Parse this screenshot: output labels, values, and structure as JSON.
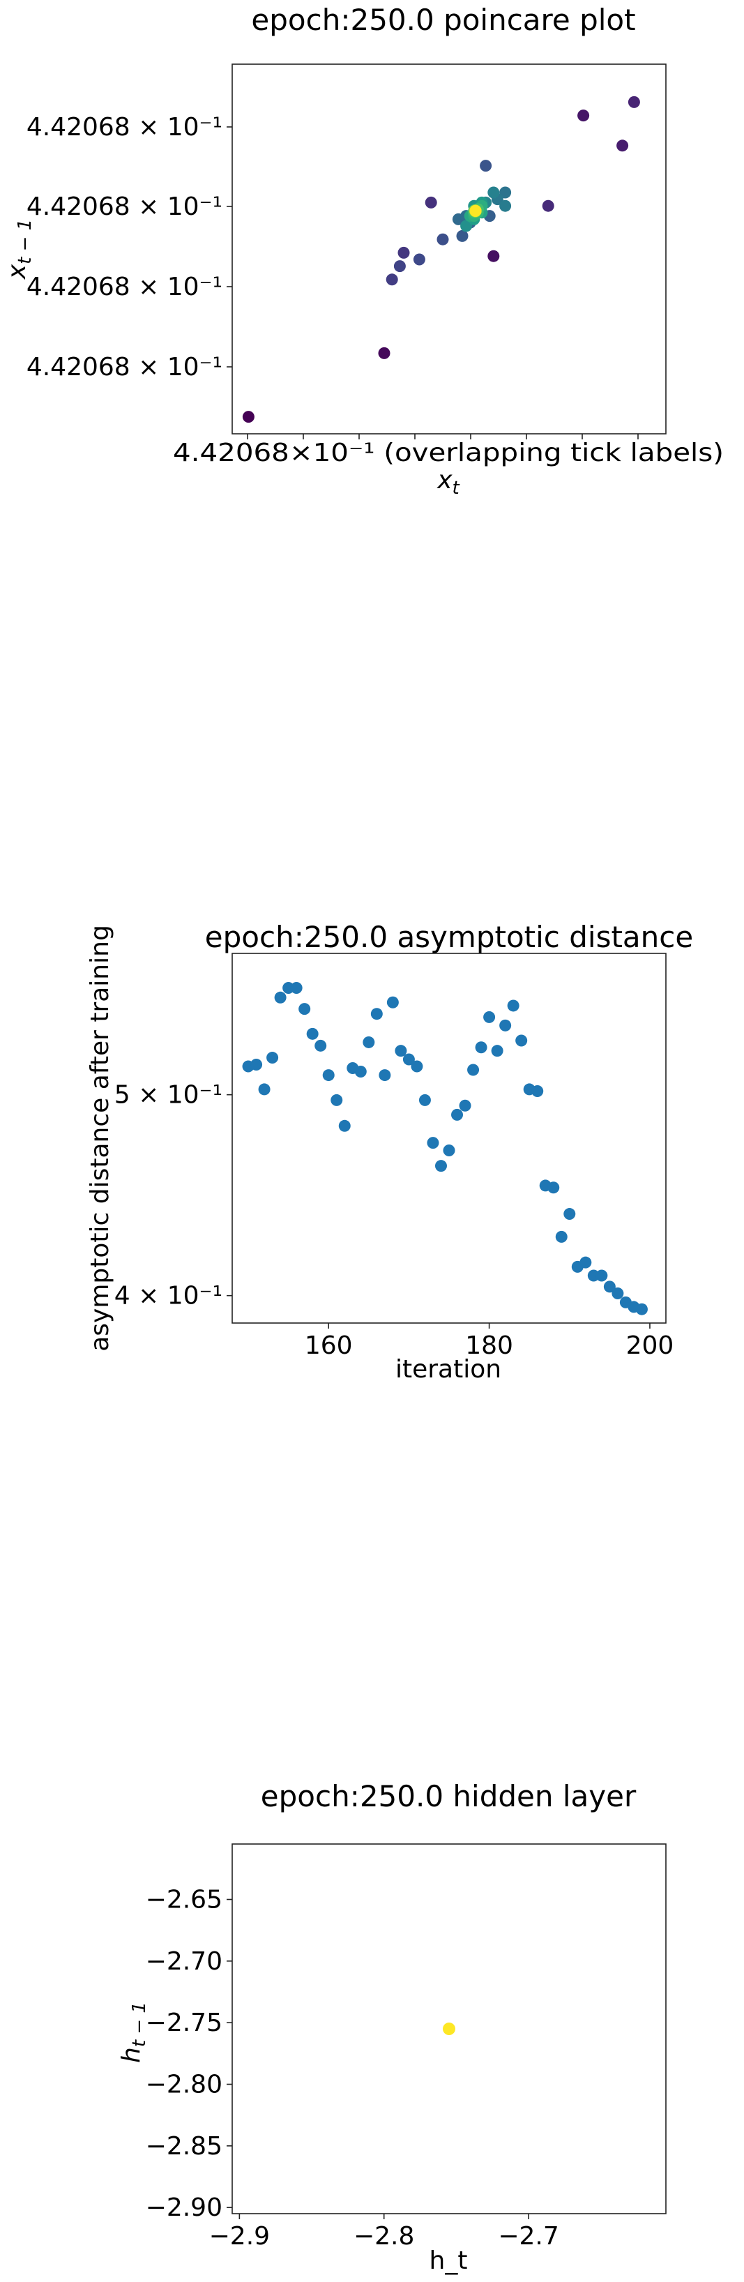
{
  "chart_data": [
    {
      "type": "scatter",
      "title": "epoch:250.0 poincare plot",
      "xlabel": "x_t",
      "ylabel": "x_{t−1}",
      "xscale": "log",
      "yscale": "log",
      "x_tick_text": "4.42068×10⁻¹ (overlapping tick labels)",
      "x_tick_labels": [
        "4.42068 × 10⁻¹",
        "4.42068 × 10⁻¹",
        "4.42068 × 10⁻¹",
        "4.42068 × 10⁻¹",
        "4.42068 × 10⁻¹",
        "4.42068 × 10⁻¹",
        "4.42068 × 10⁻¹",
        "4.42068 × 10⁻¹"
      ],
      "y_tick_labels": [
        "4.42068 × 10⁻¹",
        "4.42068 × 10⁻¹",
        "4.42068 × 10⁻¹",
        "4.42068 × 10⁻¹"
      ],
      "colormap": "viridis (later points brighter)",
      "points": [
        {
          "x": 0.0025,
          "y": 0.03,
          "c": 0.0
        },
        {
          "x": 0.35,
          "y": 0.22,
          "c": 0.02
        },
        {
          "x": 0.63,
          "y": 0.51,
          "c": 0.04
        },
        {
          "x": 0.86,
          "y": 0.93,
          "c": 0.06
        },
        {
          "x": 0.96,
          "y": 0.84,
          "c": 0.08
        },
        {
          "x": 0.99,
          "y": 0.97,
          "c": 0.1
        },
        {
          "x": 0.77,
          "y": 0.66,
          "c": 0.12
        },
        {
          "x": 0.47,
          "y": 0.67,
          "c": 0.14
        },
        {
          "x": 0.4,
          "y": 0.52,
          "c": 0.16
        },
        {
          "x": 0.37,
          "y": 0.44,
          "c": 0.18
        },
        {
          "x": 0.39,
          "y": 0.48,
          "c": 0.2
        },
        {
          "x": 0.44,
          "y": 0.5,
          "c": 0.22
        },
        {
          "x": 0.5,
          "y": 0.56,
          "c": 0.24
        },
        {
          "x": 0.61,
          "y": 0.78,
          "c": 0.26
        },
        {
          "x": 0.55,
          "y": 0.57,
          "c": 0.28
        },
        {
          "x": 0.62,
          "y": 0.63,
          "c": 0.3
        },
        {
          "x": 0.57,
          "y": 0.61,
          "c": 0.32
        },
        {
          "x": 0.54,
          "y": 0.62,
          "c": 0.34
        },
        {
          "x": 0.56,
          "y": 0.63,
          "c": 0.36
        },
        {
          "x": 0.66,
          "y": 0.7,
          "c": 0.38
        },
        {
          "x": 0.64,
          "y": 0.68,
          "c": 0.4
        },
        {
          "x": 0.66,
          "y": 0.66,
          "c": 0.42
        },
        {
          "x": 0.63,
          "y": 0.7,
          "c": 0.44
        },
        {
          "x": 0.61,
          "y": 0.67,
          "c": 0.46
        },
        {
          "x": 0.59,
          "y": 0.64,
          "c": 0.48
        },
        {
          "x": 0.56,
          "y": 0.6,
          "c": 0.5
        },
        {
          "x": 0.58,
          "y": 0.66,
          "c": 0.52
        },
        {
          "x": 0.6,
          "y": 0.67,
          "c": 0.54
        },
        {
          "x": 0.58,
          "y": 0.62,
          "c": 0.56
        },
        {
          "x": 0.6,
          "y": 0.64,
          "c": 0.58
        },
        {
          "x": 0.57,
          "y": 0.63,
          "c": 0.6
        },
        {
          "x": 0.6,
          "y": 0.66,
          "c": 0.62
        },
        {
          "x": 0.58,
          "y": 0.63,
          "c": 0.64
        },
        {
          "x": 0.59,
          "y": 0.64,
          "c": 0.66
        },
        {
          "x": 0.58,
          "y": 0.64,
          "c": 0.68
        },
        {
          "x": 0.59,
          "y": 0.65,
          "c": 0.7
        },
        {
          "x": 0.58,
          "y": 0.645,
          "c": 0.72
        },
        {
          "x": 0.585,
          "y": 0.645,
          "c": 0.74
        },
        {
          "x": 0.582,
          "y": 0.647,
          "c": 0.76
        },
        {
          "x": 0.584,
          "y": 0.643,
          "c": 0.78
        },
        {
          "x": 0.583,
          "y": 0.646,
          "c": 0.8
        },
        {
          "x": 0.584,
          "y": 0.645,
          "c": 0.82
        },
        {
          "x": 0.583,
          "y": 0.644,
          "c": 0.84
        },
        {
          "x": 0.584,
          "y": 0.646,
          "c": 0.86
        },
        {
          "x": 0.583,
          "y": 0.645,
          "c": 0.88
        },
        {
          "x": 0.584,
          "y": 0.645,
          "c": 0.9
        },
        {
          "x": 0.584,
          "y": 0.645,
          "c": 0.93
        },
        {
          "x": 0.584,
          "y": 0.645,
          "c": 0.96
        },
        {
          "x": 0.584,
          "y": 0.645,
          "c": 1.0
        }
      ]
    },
    {
      "type": "scatter",
      "title": "epoch:250.0 asymptotic distance",
      "xlabel": "iteration",
      "ylabel": "asymptotic distance after training",
      "yscale": "log",
      "xlim": [
        148,
        202
      ],
      "ylim": [
        0.388,
        0.585
      ],
      "x_ticks": [
        160,
        180,
        200
      ],
      "y_ticks": [
        {
          "value": 0.4,
          "label": "4 × 10⁻¹"
        },
        {
          "value": 0.5,
          "label": "5 × 10⁻¹"
        }
      ],
      "color": "#1f77b4",
      "x": [
        150,
        151,
        152,
        153,
        154,
        155,
        156,
        157,
        158,
        159,
        160,
        161,
        162,
        163,
        164,
        165,
        166,
        167,
        168,
        169,
        170,
        171,
        172,
        173,
        174,
        175,
        176,
        177,
        178,
        179,
        180,
        181,
        182,
        183,
        184,
        185,
        186,
        187,
        188,
        189,
        190,
        191,
        192,
        193,
        194,
        195,
        196,
        197,
        198,
        199
      ],
      "y": [
        0.516,
        0.517,
        0.503,
        0.521,
        0.557,
        0.563,
        0.563,
        0.55,
        0.535,
        0.528,
        0.511,
        0.497,
        0.483,
        0.515,
        0.513,
        0.53,
        0.547,
        0.511,
        0.554,
        0.525,
        0.52,
        0.516,
        0.497,
        0.474,
        0.462,
        0.47,
        0.489,
        0.494,
        0.514,
        0.527,
        0.545,
        0.525,
        0.54,
        0.552,
        0.531,
        0.503,
        0.502,
        0.452,
        0.451,
        0.427,
        0.438,
        0.413,
        0.415,
        0.409,
        0.409,
        0.404,
        0.401,
        0.397,
        0.395,
        0.394
      ]
    },
    {
      "type": "scatter",
      "title": "epoch:250.0 hidden layer",
      "xlabel": "h_t",
      "ylabel": "h_{t−1}",
      "xlim": [
        -2.905,
        -2.605
      ],
      "ylim": [
        -2.905,
        -2.605
      ],
      "x_ticks": [
        -2.9,
        -2.8,
        -2.7
      ],
      "y_ticks": [
        -2.65,
        -2.7,
        -2.75,
        -2.8,
        -2.85,
        -2.9
      ],
      "color": "#fde725",
      "points": [
        {
          "x": -2.755,
          "y": -2.755
        }
      ]
    }
  ]
}
